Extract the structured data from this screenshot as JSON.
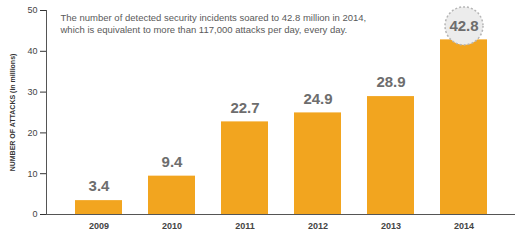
{
  "chart_data": {
    "type": "bar",
    "annotation": "The number of detected security incidents soared to 42.8 million in 2014,\nwhich is equivalent to more than 117,000 attacks per day, every day.",
    "y_label": "NUMBER OF ATTACKS (in millions)",
    "categories": [
      "2009",
      "2010",
      "2011",
      "2012",
      "2013",
      "2014"
    ],
    "values": [
      3.4,
      9.4,
      22.7,
      24.9,
      28.9,
      42.8
    ],
    "color": "#f2a51f",
    "ylim": [
      0,
      50
    ],
    "yticks": [
      0,
      10,
      20,
      30,
      40,
      50
    ],
    "grid": false,
    "data_labels": true
  }
}
